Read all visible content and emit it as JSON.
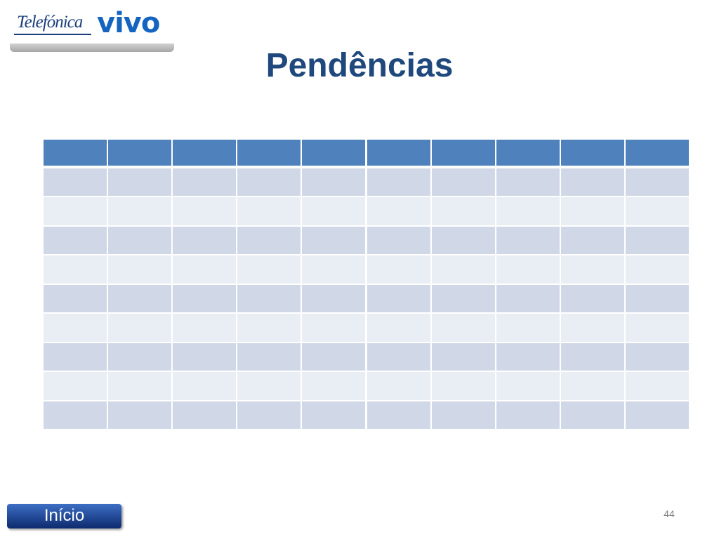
{
  "logo": {
    "company": "Telefónica",
    "brand": "vivo"
  },
  "title": "Pendências",
  "button": "Início",
  "page_number": 44
}
